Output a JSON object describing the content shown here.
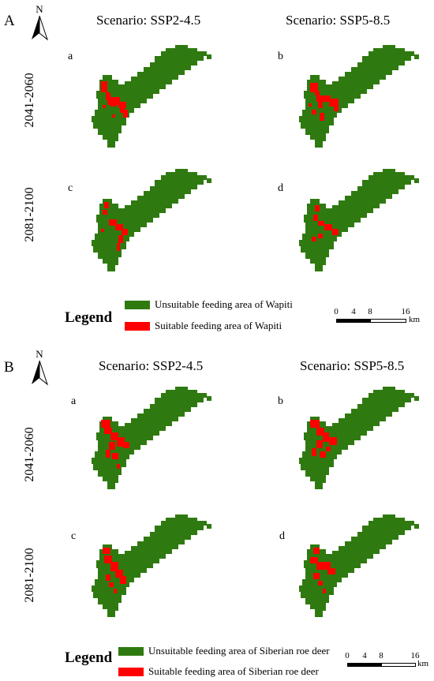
{
  "colors": {
    "unsuitable": "#2f7a10",
    "suitable": "#ff0000"
  },
  "panel_A": {
    "label": "A",
    "north": "N",
    "scenario_left": "Scenario: SSP2-4.5",
    "scenario_right": "Scenario: SSP5-8.5",
    "period_top": "2041-2060",
    "period_bottom": "2081-2100",
    "maps": [
      {
        "letter": "a",
        "suitable": "a1"
      },
      {
        "letter": "b",
        "suitable": "b1"
      },
      {
        "letter": "c",
        "suitable": "c1"
      },
      {
        "letter": "d",
        "suitable": "d1"
      }
    ],
    "legend": {
      "title": "Legend",
      "unsuitable": "Unsuitable feeding area of Wapiti",
      "suitable": "Suitable feeding area of Wapiti"
    },
    "scale": {
      "ticks": [
        "0",
        "4",
        "8",
        "16"
      ],
      "unit": "km"
    }
  },
  "panel_B": {
    "label": "B",
    "north": "N",
    "scenario_left": "Scenario: SSP2-4.5",
    "scenario_right": "Scenario: SSP5-8.5",
    "period_top": "2041-2060",
    "period_bottom": "2081-2100",
    "maps": [
      {
        "letter": "a",
        "suitable": "a2"
      },
      {
        "letter": "b",
        "suitable": "b2"
      },
      {
        "letter": "c",
        "suitable": "c2"
      },
      {
        "letter": "d",
        "suitable": "d2"
      }
    ],
    "legend": {
      "title": "Legend",
      "unsuitable": "Unsuitable feeding area of Siberian roe deer",
      "suitable": "Suitable feeding area of Siberian roe deer"
    },
    "scale": {
      "ticks": [
        "0",
        "4",
        "8",
        "16"
      ],
      "unit": "km"
    }
  }
}
